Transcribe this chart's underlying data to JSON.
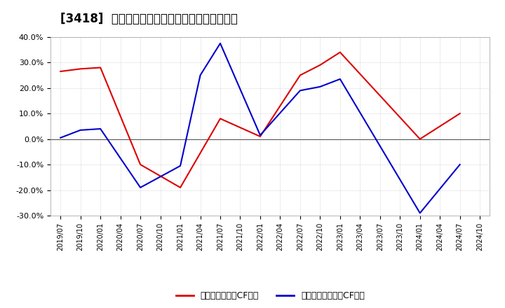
{
  "title": "[3418]  有利子負債キャッシュフロー比率の推移",
  "x_labels": [
    "2019/07",
    "2019/10",
    "2020/01",
    "2020/04",
    "2020/07",
    "2020/10",
    "2021/01",
    "2021/04",
    "2021/07",
    "2021/10",
    "2022/01",
    "2022/04",
    "2022/07",
    "2022/10",
    "2023/01",
    "2023/04",
    "2023/07",
    "2023/10",
    "2024/01",
    "2024/04",
    "2024/07",
    "2024/10"
  ],
  "red_x": [
    0,
    1,
    2,
    4,
    6,
    8,
    10,
    12,
    13,
    14,
    18,
    20
  ],
  "red_y": [
    26.5,
    27.5,
    28.0,
    -10.0,
    -19.0,
    8.0,
    1.0,
    25.0,
    29.0,
    34.0,
    0.0,
    10.0
  ],
  "blue_x": [
    0,
    1,
    2,
    4,
    6,
    7,
    8,
    10,
    12,
    13,
    14,
    18,
    20
  ],
  "blue_y": [
    0.5,
    3.5,
    4.0,
    -19.0,
    -10.5,
    25.0,
    37.5,
    1.5,
    19.0,
    20.5,
    23.5,
    -29.0,
    -10.0
  ],
  "red_label": "有利子負債営業CF比率",
  "blue_label": "有利子負債フリーCF比率",
  "ylim": [
    -30.0,
    40.0
  ],
  "yticks": [
    -30.0,
    -20.0,
    -10.0,
    0.0,
    10.0,
    20.0,
    30.0,
    40.0
  ],
  "red_color": "#dd0000",
  "blue_color": "#0000cc",
  "bg_color": "#ffffff",
  "plot_bg_color": "#ffffff",
  "grid_color": "#bbbbbb",
  "title_fontsize": 12
}
